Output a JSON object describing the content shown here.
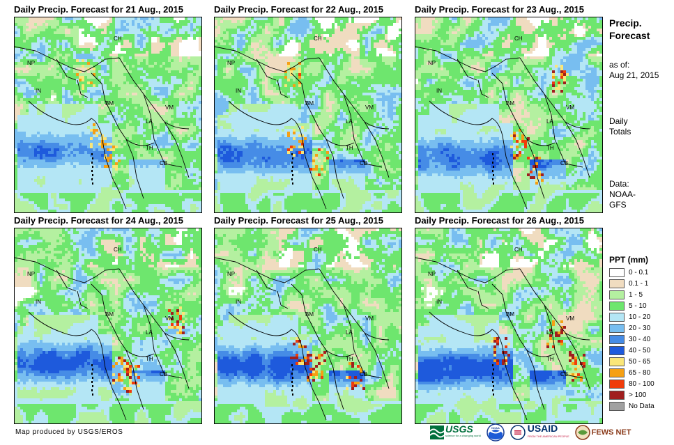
{
  "panels": [
    {
      "title": "Daily Precip. Forecast for 21 Aug., 2015",
      "variant": 0
    },
    {
      "title": "Daily Precip. Forecast for 22 Aug., 2015",
      "variant": 1
    },
    {
      "title": "Daily Precip. Forecast for 23 Aug., 2015",
      "variant": 2
    },
    {
      "title": "Daily Precip. Forecast for 24 Aug., 2015",
      "variant": 3
    },
    {
      "title": "Daily Precip. Forecast for 25 Aug., 2015",
      "variant": 4
    },
    {
      "title": "Daily Precip. Forecast for 26 Aug., 2015",
      "variant": 5
    }
  ],
  "map_labels": {
    "ch": "CH",
    "np": "NP",
    "in": "IN",
    "bm": "BM",
    "la": "LA",
    "vm": "VM",
    "th": "TH",
    "cb": "CB"
  },
  "sidebar": {
    "title_line1": "Precip.",
    "title_line2": "Forecast",
    "asof_line1": "as of:",
    "asof_line2": "Aug 21, 2015",
    "totals_line1": "Daily",
    "totals_line2": "Totals",
    "data_line1": "Data:",
    "data_line2": "NOAA-",
    "data_line3": "GFS"
  },
  "legend": {
    "title": "PPT (mm)",
    "items": [
      {
        "label": "0 - 0.1",
        "color": "#ffffff"
      },
      {
        "label": "0.1 - 1",
        "color": "#f0dcc0"
      },
      {
        "label": "1 - 5",
        "color": "#b4f0a0"
      },
      {
        "label": "5 - 10",
        "color": "#6ee66e"
      },
      {
        "label": "10 - 20",
        "color": "#b4e6f5"
      },
      {
        "label": "20 - 30",
        "color": "#78bef0"
      },
      {
        "label": "30 - 40",
        "color": "#468ce6"
      },
      {
        "label": "40 - 50",
        "color": "#1e5adc"
      },
      {
        "label": "50 - 65",
        "color": "#fae678"
      },
      {
        "label": "65 - 80",
        "color": "#f5a014"
      },
      {
        "label": "80 - 100",
        "color": "#f03c0a"
      },
      {
        "label": "> 100",
        "color": "#a01e1e"
      },
      {
        "label": "No Data",
        "color": "#a0a0a0"
      }
    ]
  },
  "footer": {
    "credit": "Map produced by USGS/EROS",
    "logo_usgs": "USGS",
    "logo_usgs_sub": "science for a changing world",
    "logo_noaa": "NOAA",
    "logo_usaid": "USAID",
    "logo_usaid_sub": "FROM THE AMERICAN PEOPLE",
    "logo_fews": "FEWS NET"
  }
}
